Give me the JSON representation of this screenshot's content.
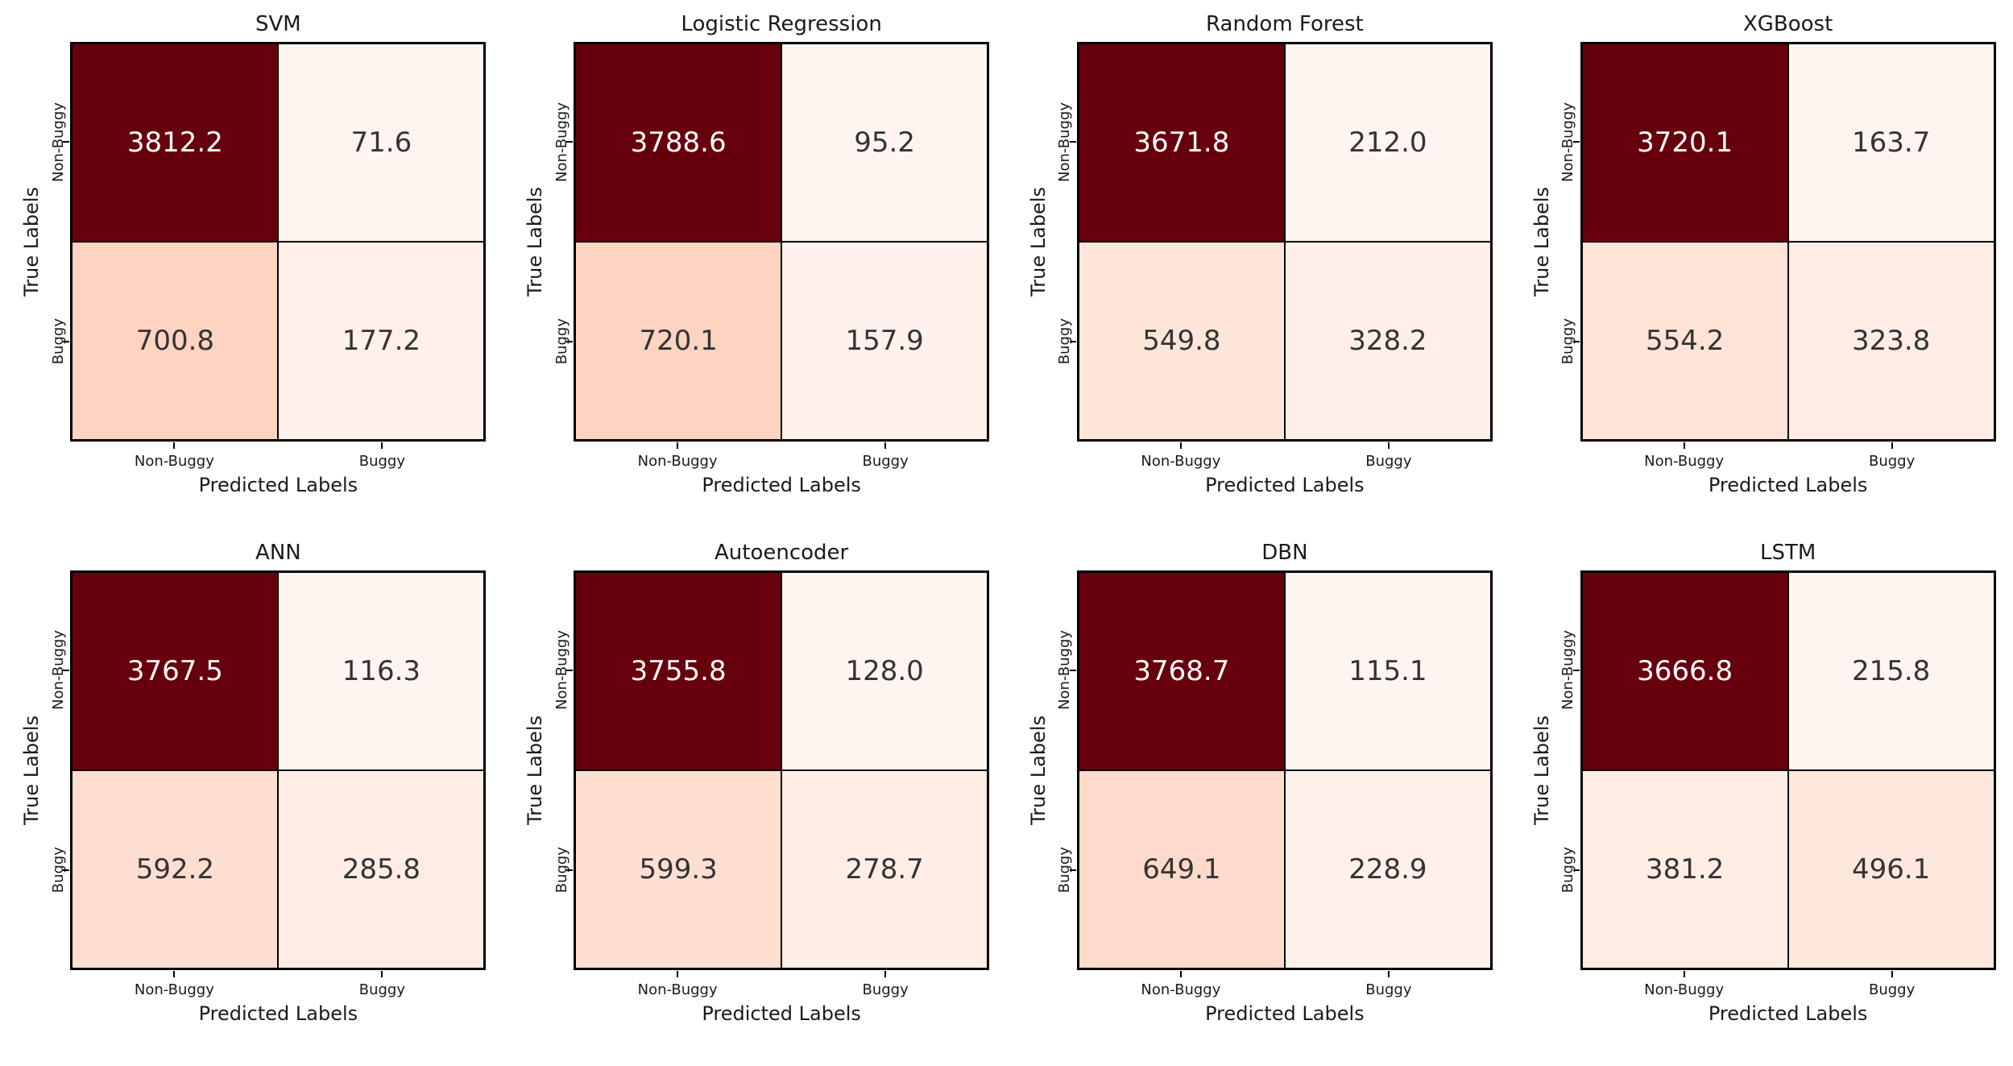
{
  "figure": {
    "background": "#ffffff",
    "colormap": "Reds",
    "colormap_stops": [
      "#fff5f0",
      "#fee0d2",
      "#fcbba1",
      "#fc9272",
      "#fb6a4a",
      "#ef3b2c",
      "#cb181d",
      "#a50f15",
      "#67000d"
    ],
    "cell_text_dark": "#333333",
    "cell_text_light": "#ffffff",
    "grid_line_color": "#000000"
  },
  "chart_data": [
    {
      "type": "heatmap",
      "title": "SVM",
      "xlabel": "Predicted Labels",
      "ylabel": "True Labels",
      "x_tick_labels": [
        "Non-Buggy",
        "Buggy"
      ],
      "y_tick_labels": [
        "Non-Buggy",
        "Buggy"
      ],
      "values": [
        [
          3812.2,
          71.6
        ],
        [
          700.8,
          177.2
        ]
      ]
    },
    {
      "type": "heatmap",
      "title": "Logistic Regression",
      "xlabel": "Predicted Labels",
      "ylabel": "True Labels",
      "x_tick_labels": [
        "Non-Buggy",
        "Buggy"
      ],
      "y_tick_labels": [
        "Non-Buggy",
        "Buggy"
      ],
      "values": [
        [
          3788.6,
          95.2
        ],
        [
          720.1,
          157.9
        ]
      ]
    },
    {
      "type": "heatmap",
      "title": "Random Forest",
      "xlabel": "Predicted Labels",
      "ylabel": "True Labels",
      "x_tick_labels": [
        "Non-Buggy",
        "Buggy"
      ],
      "y_tick_labels": [
        "Non-Buggy",
        "Buggy"
      ],
      "values": [
        [
          3671.8,
          212.0
        ],
        [
          549.8,
          328.2
        ]
      ]
    },
    {
      "type": "heatmap",
      "title": "XGBoost",
      "xlabel": "Predicted Labels",
      "ylabel": "True Labels",
      "x_tick_labels": [
        "Non-Buggy",
        "Buggy"
      ],
      "y_tick_labels": [
        "Non-Buggy",
        "Buggy"
      ],
      "values": [
        [
          3720.1,
          163.7
        ],
        [
          554.2,
          323.8
        ]
      ]
    },
    {
      "type": "heatmap",
      "title": "ANN",
      "xlabel": "Predicted Labels",
      "ylabel": "True Labels",
      "x_tick_labels": [
        "Non-Buggy",
        "Buggy"
      ],
      "y_tick_labels": [
        "Non-Buggy",
        "Buggy"
      ],
      "values": [
        [
          3767.5,
          116.3
        ],
        [
          592.2,
          285.8
        ]
      ]
    },
    {
      "type": "heatmap",
      "title": "Autoencoder",
      "xlabel": "Predicted Labels",
      "ylabel": "True Labels",
      "x_tick_labels": [
        "Non-Buggy",
        "Buggy"
      ],
      "y_tick_labels": [
        "Non-Buggy",
        "Buggy"
      ],
      "values": [
        [
          3755.8,
          128.0
        ],
        [
          599.3,
          278.7
        ]
      ]
    },
    {
      "type": "heatmap",
      "title": "DBN",
      "xlabel": "Predicted Labels",
      "ylabel": "True Labels",
      "x_tick_labels": [
        "Non-Buggy",
        "Buggy"
      ],
      "y_tick_labels": [
        "Non-Buggy",
        "Buggy"
      ],
      "values": [
        [
          3768.7,
          115.1
        ],
        [
          649.1,
          228.9
        ]
      ]
    },
    {
      "type": "heatmap",
      "title": "LSTM",
      "xlabel": "Predicted Labels",
      "ylabel": "True Labels",
      "x_tick_labels": [
        "Non-Buggy",
        "Buggy"
      ],
      "y_tick_labels": [
        "Non-Buggy",
        "Buggy"
      ],
      "values": [
        [
          3666.8,
          215.8
        ],
        [
          381.2,
          496.1
        ]
      ]
    }
  ]
}
